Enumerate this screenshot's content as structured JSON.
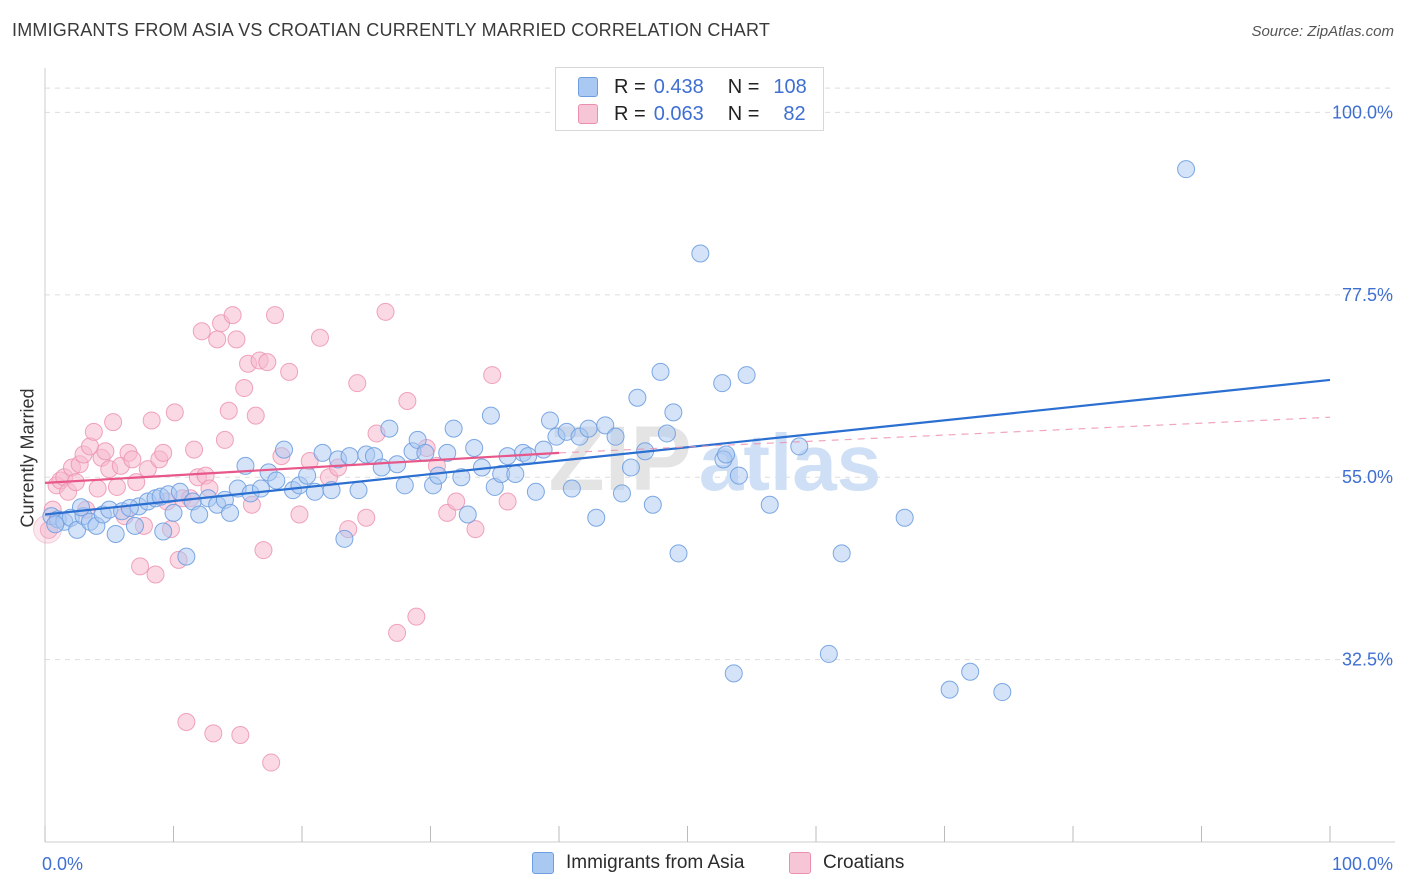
{
  "header": {
    "title": "IMMIGRANTS FROM ASIA VS CROATIAN CURRENTLY MARRIED CORRELATION CHART",
    "source": "Source: ZipAtlas.com"
  },
  "legend_top": {
    "rows": [
      {
        "r_label": "R =",
        "r_value": "0.438",
        "n_label": "N =",
        "n_value": "108"
      },
      {
        "r_label": "R =",
        "r_value": "0.063",
        "n_label": "N =",
        "n_value": "82"
      }
    ]
  },
  "watermark": {
    "zip": "ZIP",
    "atlas": "atlas"
  },
  "colors": {
    "blue_fill": "#a9c8f2",
    "blue_stroke": "#6f9ee0",
    "blue_line": "#2b6fd1",
    "pink_fill": "#f6b9cd",
    "pink_stroke": "#ec8fae",
    "pink_line": "#e8578a",
    "axis_text": "#3f6fd1",
    "grid": "#dddddd"
  },
  "chart_data": {
    "type": "scatter",
    "title": "IMMIGRANTS FROM ASIA VS CROATIAN CURRENTLY MARRIED CORRELATION CHART",
    "ylabel": "Currently Married",
    "xlabel": "",
    "x_tick_labels": [
      "0.0%",
      "100.0%"
    ],
    "y_tick_labels": [
      "100.0%",
      "77.5%",
      "55.0%",
      "32.5%"
    ],
    "y_ticks": [
      100.0,
      77.5,
      55.0,
      32.5
    ],
    "xlim": [
      0,
      100
    ],
    "ylim": [
      10,
      104
    ],
    "grid": true,
    "legend_position": "bottom",
    "series": [
      {
        "name": "Immigrants from Asia",
        "color": "#a9c8f2",
        "trend": {
          "x": [
            0,
            100
          ],
          "y": [
            50.4,
            67.0
          ]
        },
        "points": [
          [
            0.5,
            50.2
          ],
          [
            1.0,
            49.8
          ],
          [
            1.5,
            49.5
          ],
          [
            2.0,
            50.0
          ],
          [
            2.5,
            48.5
          ],
          [
            3.0,
            50.2
          ],
          [
            3.5,
            49.5
          ],
          [
            4.0,
            49.0
          ],
          [
            4.5,
            50.4
          ],
          [
            5.0,
            51.0
          ],
          [
            5.5,
            48.0
          ],
          [
            6.0,
            50.8
          ],
          [
            7.0,
            49.0
          ],
          [
            7.3,
            51.4
          ],
          [
            8.0,
            52.0
          ],
          [
            8.6,
            52.4
          ],
          [
            9.0,
            52.6
          ],
          [
            9.6,
            52.9
          ],
          [
            10.0,
            50.6
          ],
          [
            10.5,
            53.2
          ],
          [
            11.0,
            45.2
          ],
          [
            11.5,
            52.0
          ],
          [
            12.0,
            50.4
          ],
          [
            12.7,
            52.4
          ],
          [
            13.4,
            51.6
          ],
          [
            14.0,
            52.2
          ],
          [
            14.4,
            50.6
          ],
          [
            15.0,
            53.6
          ],
          [
            15.6,
            56.4
          ],
          [
            16.0,
            53.0
          ],
          [
            16.8,
            53.6
          ],
          [
            17.4,
            55.6
          ],
          [
            18.0,
            54.6
          ],
          [
            18.6,
            58.4
          ],
          [
            19.3,
            53.4
          ],
          [
            19.8,
            54.0
          ],
          [
            20.4,
            55.2
          ],
          [
            21.0,
            53.2
          ],
          [
            21.6,
            58.0
          ],
          [
            22.3,
            53.4
          ],
          [
            22.8,
            57.2
          ],
          [
            23.3,
            47.4
          ],
          [
            23.7,
            57.6
          ],
          [
            24.4,
            53.4
          ],
          [
            25.0,
            57.8
          ],
          [
            25.6,
            57.6
          ],
          [
            26.2,
            56.2
          ],
          [
            26.8,
            61.0
          ],
          [
            27.4,
            56.6
          ],
          [
            28.0,
            54.0
          ],
          [
            28.6,
            58.2
          ],
          [
            29.0,
            59.6
          ],
          [
            29.6,
            58.0
          ],
          [
            30.2,
            54.0
          ],
          [
            30.6,
            55.2
          ],
          [
            31.3,
            58.0
          ],
          [
            31.8,
            61.0
          ],
          [
            32.4,
            55.0
          ],
          [
            32.9,
            50.4
          ],
          [
            33.4,
            58.6
          ],
          [
            34.0,
            56.2
          ],
          [
            34.7,
            62.6
          ],
          [
            35.0,
            53.8
          ],
          [
            35.5,
            55.4
          ],
          [
            36.0,
            57.6
          ],
          [
            36.6,
            55.4
          ],
          [
            37.2,
            58.0
          ],
          [
            37.6,
            57.6
          ],
          [
            38.2,
            53.2
          ],
          [
            38.8,
            58.4
          ],
          [
            39.3,
            62.0
          ],
          [
            39.8,
            60.0
          ],
          [
            40.6,
            60.6
          ],
          [
            41.0,
            53.6
          ],
          [
            41.6,
            60.0
          ],
          [
            42.3,
            61.0
          ],
          [
            42.9,
            50.0
          ],
          [
            43.6,
            61.4
          ],
          [
            44.4,
            60.0
          ],
          [
            44.9,
            53.0
          ],
          [
            45.6,
            56.2
          ],
          [
            46.1,
            64.8
          ],
          [
            46.7,
            58.2
          ],
          [
            47.3,
            51.6
          ],
          [
            47.9,
            68.0
          ],
          [
            48.4,
            60.4
          ],
          [
            48.9,
            63.0
          ],
          [
            49.3,
            45.6
          ],
          [
            51.0,
            82.6
          ],
          [
            52.7,
            66.6
          ],
          [
            52.8,
            57.2
          ],
          [
            53.0,
            57.8
          ],
          [
            53.6,
            30.8
          ],
          [
            54.0,
            55.2
          ],
          [
            54.6,
            67.6
          ],
          [
            56.4,
            51.6
          ],
          [
            58.7,
            58.8
          ],
          [
            61.0,
            33.2
          ],
          [
            62.0,
            45.6
          ],
          [
            66.9,
            50.0
          ],
          [
            70.4,
            28.8
          ],
          [
            72.0,
            31.0
          ],
          [
            74.5,
            28.5
          ],
          [
            88.8,
            93.0
          ],
          [
            0.8,
            49.2
          ],
          [
            2.8,
            51.3
          ],
          [
            6.6,
            51.2
          ],
          [
            9.2,
            48.3
          ]
        ]
      },
      {
        "name": "Croatians",
        "color": "#f6b9cd",
        "trend": {
          "x": [
            0,
            40
          ],
          "y": [
            54.3,
            58.0
          ]
        },
        "trend_extension": {
          "x": [
            40,
            100
          ],
          "y": [
            58.0,
            62.4
          ]
        },
        "points": [
          [
            0.3,
            48.5
          ],
          [
            0.6,
            51.0
          ],
          [
            0.9,
            54.0
          ],
          [
            1.2,
            54.6
          ],
          [
            1.5,
            55.0
          ],
          [
            1.8,
            53.2
          ],
          [
            2.1,
            56.2
          ],
          [
            2.4,
            54.4
          ],
          [
            2.7,
            56.6
          ],
          [
            3.0,
            57.8
          ],
          [
            3.2,
            51.0
          ],
          [
            3.5,
            58.8
          ],
          [
            3.8,
            60.6
          ],
          [
            4.1,
            53.6
          ],
          [
            4.4,
            57.4
          ],
          [
            4.7,
            58.2
          ],
          [
            5.0,
            56.0
          ],
          [
            5.3,
            61.8
          ],
          [
            5.6,
            53.8
          ],
          [
            5.9,
            56.4
          ],
          [
            6.2,
            50.2
          ],
          [
            6.5,
            58.0
          ],
          [
            6.8,
            57.2
          ],
          [
            7.1,
            54.4
          ],
          [
            7.4,
            44.0
          ],
          [
            7.7,
            49.0
          ],
          [
            8.0,
            56.0
          ],
          [
            8.3,
            62.0
          ],
          [
            8.6,
            43.0
          ],
          [
            8.9,
            57.2
          ],
          [
            9.2,
            58.0
          ],
          [
            9.5,
            52.0
          ],
          [
            9.8,
            48.6
          ],
          [
            10.1,
            63.0
          ],
          [
            10.4,
            44.8
          ],
          [
            10.7,
            52.4
          ],
          [
            11.0,
            24.8
          ],
          [
            11.3,
            52.4
          ],
          [
            11.6,
            58.4
          ],
          [
            11.9,
            55.0
          ],
          [
            12.2,
            73.0
          ],
          [
            12.5,
            55.2
          ],
          [
            12.8,
            53.6
          ],
          [
            13.1,
            23.4
          ],
          [
            13.4,
            72.0
          ],
          [
            13.7,
            74.0
          ],
          [
            14.0,
            59.6
          ],
          [
            14.3,
            63.2
          ],
          [
            14.6,
            75.0
          ],
          [
            14.9,
            72.0
          ],
          [
            15.2,
            23.2
          ],
          [
            15.5,
            66.0
          ],
          [
            15.8,
            69.0
          ],
          [
            16.1,
            51.6
          ],
          [
            16.4,
            62.6
          ],
          [
            16.7,
            69.4
          ],
          [
            17.0,
            46.0
          ],
          [
            17.3,
            69.2
          ],
          [
            17.6,
            19.8
          ],
          [
            17.9,
            75.0
          ],
          [
            18.4,
            57.6
          ],
          [
            19.0,
            68.0
          ],
          [
            19.8,
            50.4
          ],
          [
            20.6,
            57.0
          ],
          [
            21.4,
            72.2
          ],
          [
            22.1,
            55.0
          ],
          [
            22.8,
            56.2
          ],
          [
            23.6,
            48.6
          ],
          [
            24.3,
            66.6
          ],
          [
            25.0,
            50.0
          ],
          [
            25.8,
            60.4
          ],
          [
            26.5,
            75.4
          ],
          [
            27.4,
            35.8
          ],
          [
            28.2,
            64.4
          ],
          [
            28.9,
            37.8
          ],
          [
            29.7,
            58.6
          ],
          [
            30.5,
            56.4
          ],
          [
            31.3,
            50.6
          ],
          [
            32.0,
            52.0
          ],
          [
            33.5,
            48.6
          ],
          [
            34.8,
            67.6
          ],
          [
            36.0,
            52.0
          ]
        ]
      }
    ]
  },
  "bottom_legend": {
    "items": [
      {
        "label": "Immigrants from Asia"
      },
      {
        "label": "Croatians"
      }
    ]
  }
}
